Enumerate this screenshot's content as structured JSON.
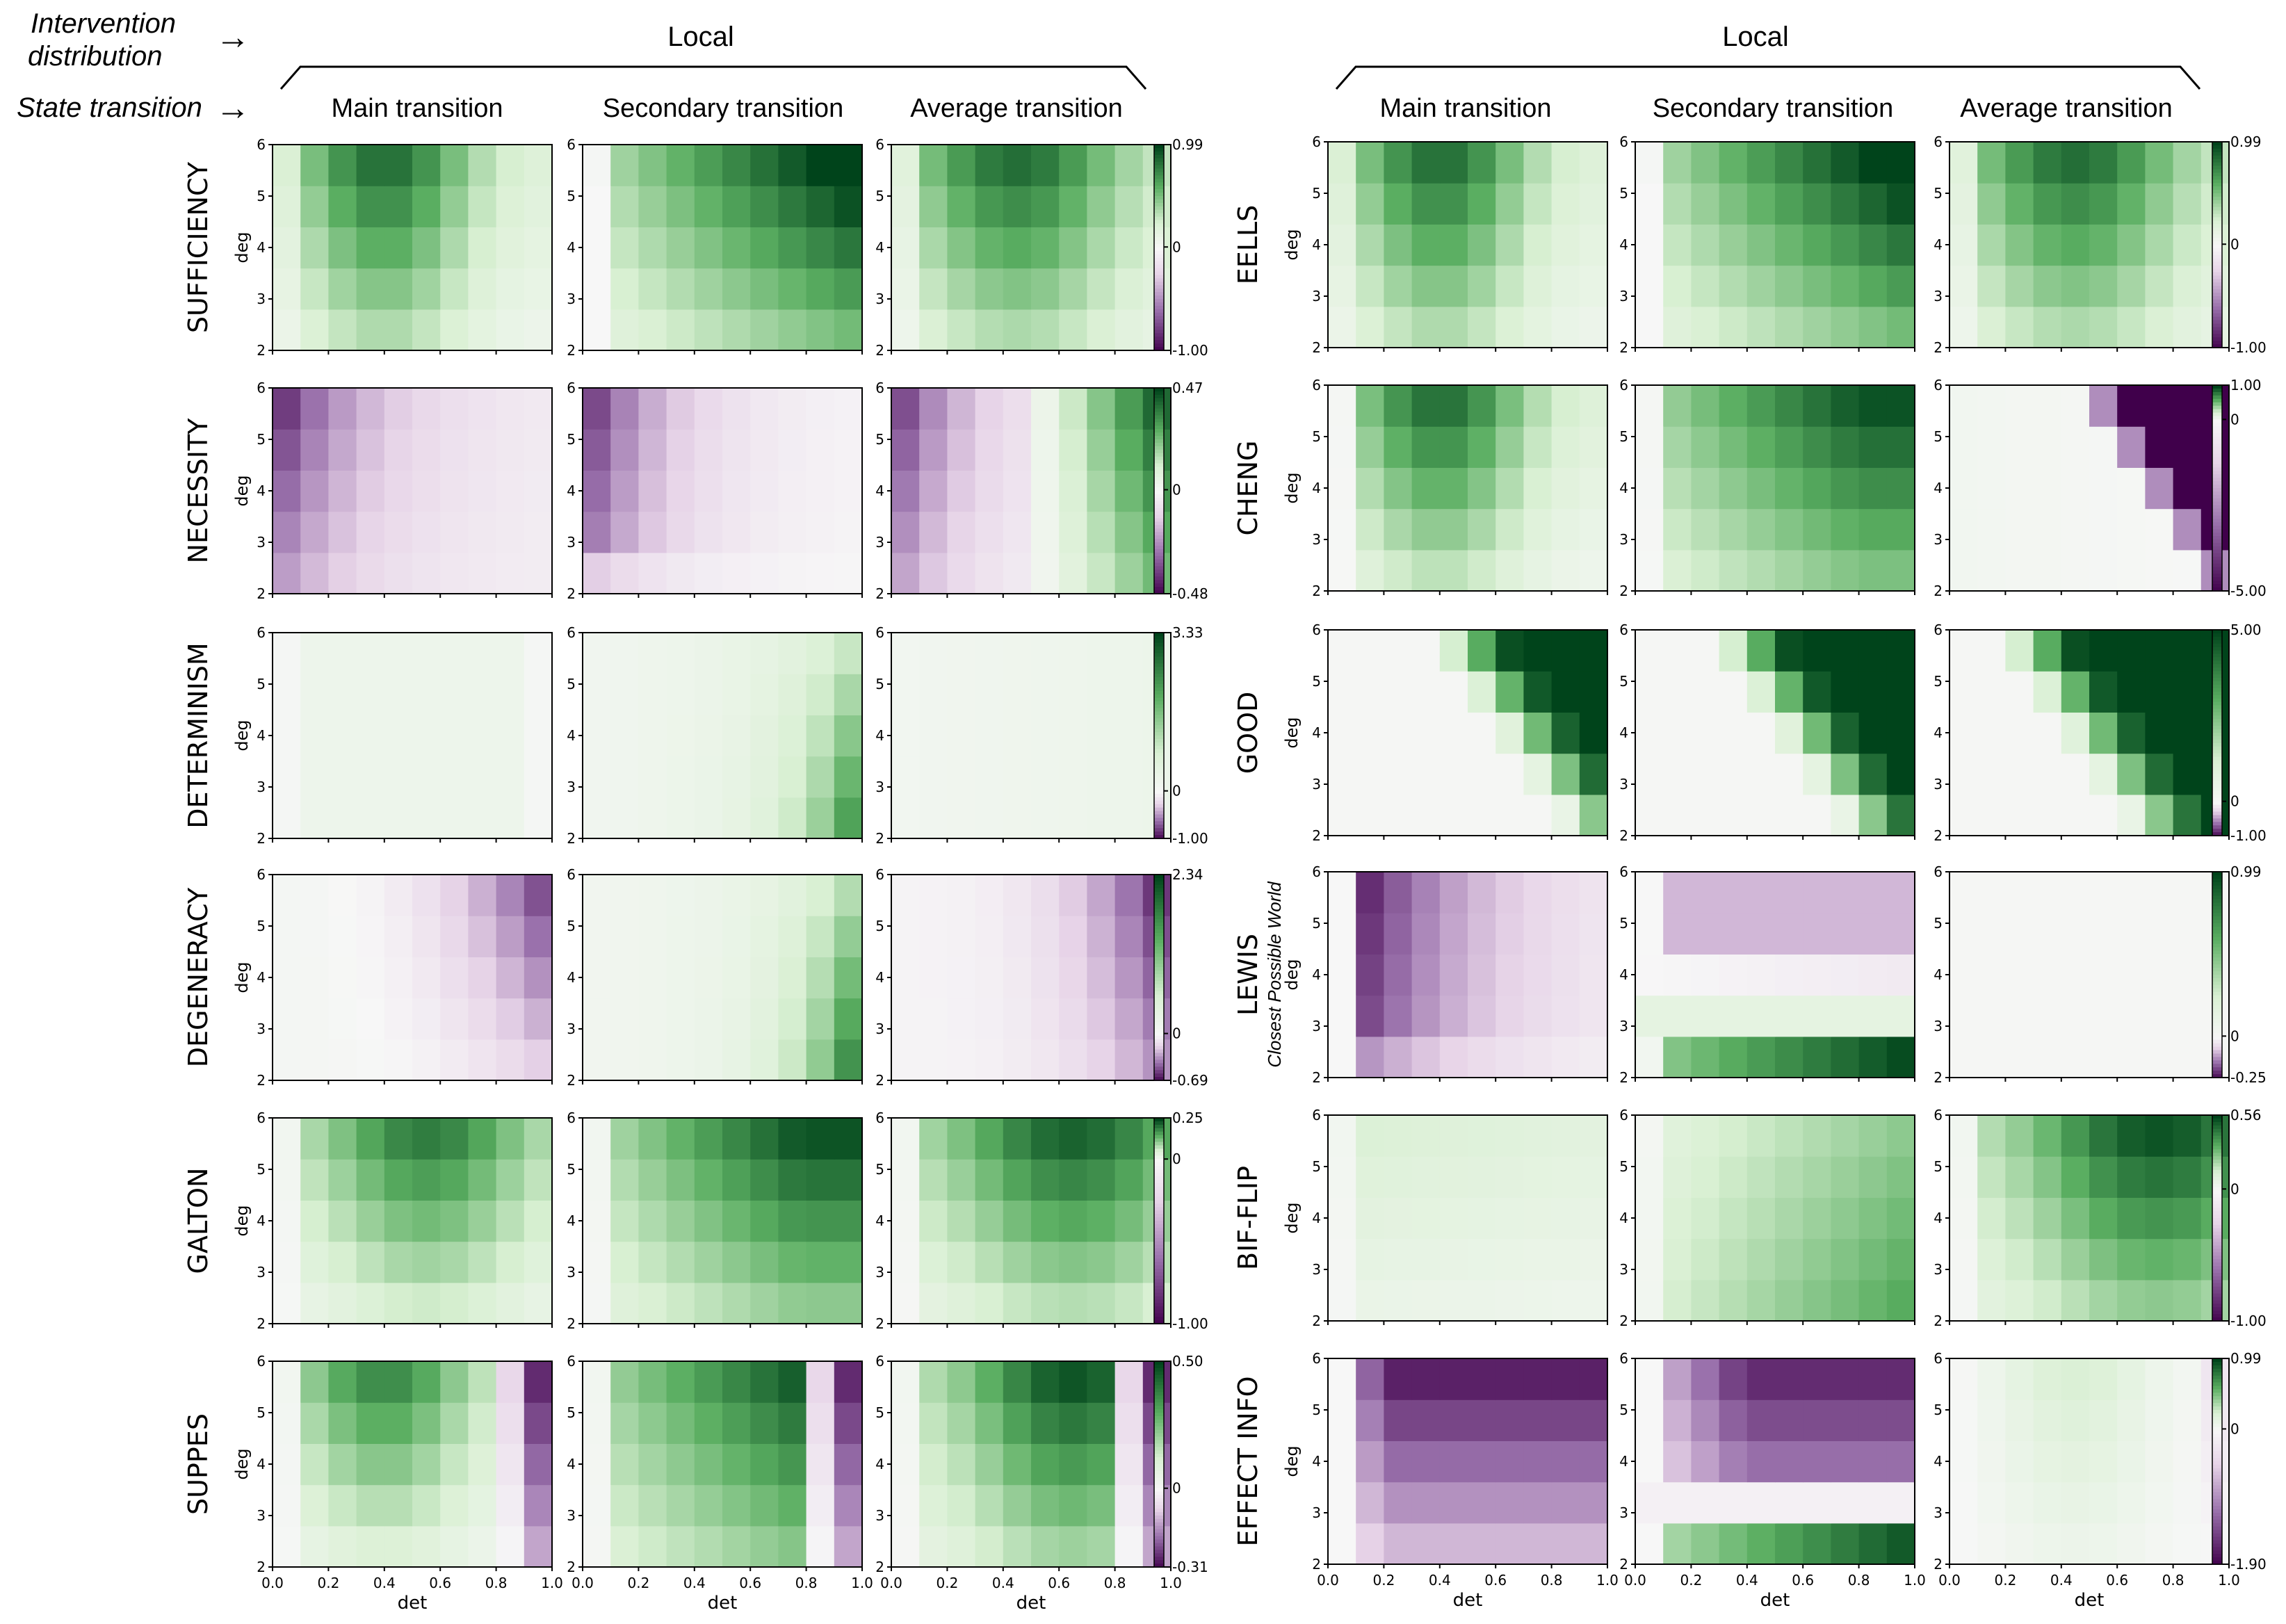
{
  "header": {
    "intervention_label_line1": "Intervention",
    "intervention_label_line2": "distribution",
    "state_transition_label": "State transition",
    "arrow_glyph": "→",
    "left_group_title": "Local",
    "right_group_title": "Local",
    "column_titles": [
      "Main transition",
      "Secondary transition",
      "Average transition"
    ]
  },
  "colors": {
    "neg_strong": "#40004b",
    "neg_mid": "#9970ab",
    "neg_light": "#e7d4e8",
    "neutral": "#f7f7f7",
    "pos_light": "#d9f0d3",
    "pos_mid": "#5aae61",
    "pos_strong": "#00441b"
  },
  "chart_data": {
    "type": "heatmap",
    "colormap": "PRGn (purple negative, white zero, green positive)",
    "xlabel": "det",
    "ylabel": "deg",
    "x_ticks": [
      "0.0",
      "0.2",
      "0.4",
      "0.6",
      "0.8",
      "1.0"
    ],
    "y_ticks": [
      "2",
      "3",
      "4",
      "5",
      "6"
    ],
    "xlim": [
      0,
      1
    ],
    "ylim": [
      2,
      6
    ],
    "grid": "10 det bins x 5 deg bins",
    "groups": [
      {
        "title": "Local",
        "rows": [
          {
            "name": "SUFFICIENCY",
            "cb_max": "0.99",
            "cb_zero": "0",
            "cb_min": "-1.00",
            "vmax": 0.99,
            "vmin": -1.0,
            "pattern": "hump"
          },
          {
            "name": "NECESSITY",
            "cb_max": "0.47",
            "cb_zero": "0",
            "cb_min": "-0.48",
            "vmax": 0.47,
            "vmin": -0.48,
            "pattern": "neg_left"
          },
          {
            "name": "DETERMINISM",
            "cb_max": "3.33",
            "cb_zero": "0",
            "cb_min": "-1.00",
            "vmax": 3.33,
            "vmin": -1.0,
            "pattern": "faint"
          },
          {
            "name": "DEGENERACY",
            "cb_max": "2.34",
            "cb_zero": "0",
            "cb_min": "-0.69",
            "vmax": 2.34,
            "vmin": -0.69,
            "pattern": "neg_right"
          },
          {
            "name": "GALTON",
            "cb_max": "0.25",
            "cb_zero": "0",
            "cb_min": "-1.00",
            "vmax": 0.25,
            "vmin": -1.0,
            "pattern": "hump_wide"
          },
          {
            "name": "SUPPES",
            "cb_max": "0.50",
            "cb_zero": "0",
            "cb_min": "-0.31",
            "vmax": 0.5,
            "vmin": -0.31,
            "pattern": "hump_neg_edge"
          }
        ]
      },
      {
        "title": "Local",
        "rows": [
          {
            "name": "EELLS",
            "cb_max": "0.99",
            "cb_zero": "0",
            "cb_min": "-1.00",
            "vmax": 0.99,
            "vmin": -1.0,
            "pattern": "hump"
          },
          {
            "name": "CHENG",
            "cb_max": "1.00",
            "cb_zero": "0",
            "cb_min": "-5.00",
            "vmax": 1.0,
            "vmin": -5.0,
            "pattern": "hump_diag_neg"
          },
          {
            "name": "GOOD",
            "cb_max": "5.00",
            "cb_zero": "0",
            "cb_min": "-1.00",
            "vmax": 5.0,
            "vmin": -1.0,
            "pattern": "diag_pos"
          },
          {
            "name": "LEWIS",
            "subtitle": "Closest Possible World",
            "cb_max": "0.99",
            "cb_zero": "0",
            "cb_min": "-0.25",
            "vmax": 0.99,
            "vmin": -0.25,
            "pattern": "lewis"
          },
          {
            "name": "BIF-FLIP",
            "cb_max": "0.56",
            "cb_zero": "0",
            "cb_min": "-1.00",
            "vmax": 0.56,
            "vmin": -1.0,
            "pattern": "soft_pos"
          },
          {
            "name": "EFFECT INFO",
            "cb_max": "0.99",
            "cb_zero": "0",
            "cb_min": "-1.90",
            "vmax": 0.99,
            "vmin": -1.9,
            "pattern": "effect"
          }
        ]
      }
    ]
  }
}
